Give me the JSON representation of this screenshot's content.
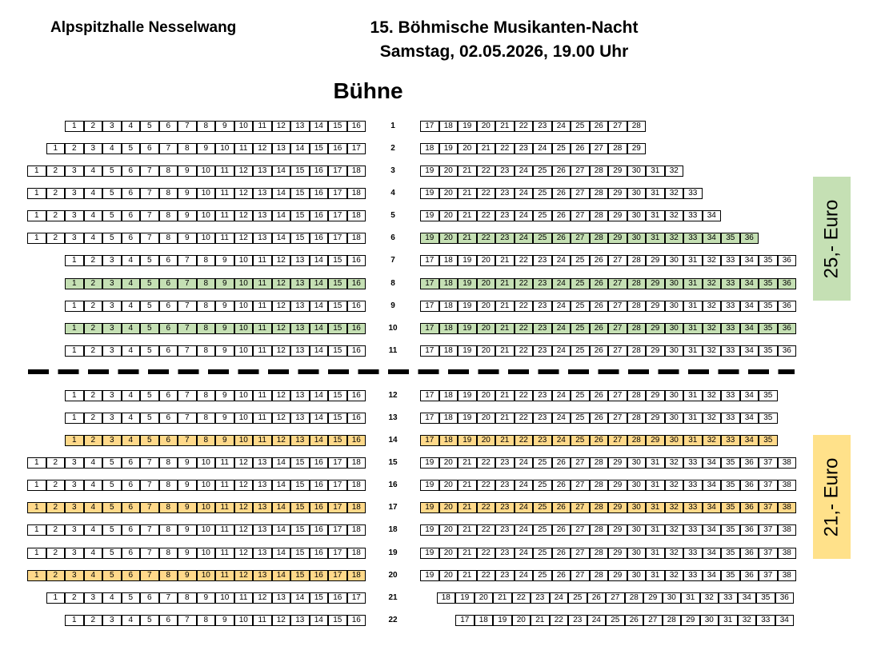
{
  "header": {
    "venue": "Alpspitzhalle Nesselwang",
    "title_line1": "15. Böhmische Musikanten-Nacht",
    "title_line2": "Samstag, 02.05.2026, 19.00 Uhr",
    "stage": "Bühne"
  },
  "prices": {
    "front": "25,- Euro",
    "back": "21,- Euro"
  },
  "colors": {
    "front_highlight": "#c5e0b4",
    "back_highlight": "#ffd98a"
  },
  "rows": [
    {
      "row": "1",
      "left": [
        1,
        16
      ],
      "right": [
        17,
        28
      ],
      "hl": ""
    },
    {
      "row": "2",
      "left": [
        1,
        17
      ],
      "right": [
        18,
        29
      ],
      "hl": ""
    },
    {
      "row": "3",
      "left": [
        1,
        18
      ],
      "right": [
        19,
        32
      ],
      "hl": ""
    },
    {
      "row": "4",
      "left": [
        1,
        18
      ],
      "right": [
        19,
        33
      ],
      "hl": ""
    },
    {
      "row": "5",
      "left": [
        1,
        18
      ],
      "right": [
        19,
        34
      ],
      "hl": ""
    },
    {
      "row": "6",
      "left": [
        1,
        18
      ],
      "right": [
        19,
        36
      ],
      "hl": "right-green"
    },
    {
      "row": "7",
      "left": [
        1,
        16
      ],
      "right": [
        17,
        36
      ],
      "hl": ""
    },
    {
      "row": "8",
      "left": [
        1,
        16
      ],
      "right": [
        17,
        36
      ],
      "hl": "green"
    },
    {
      "row": "9",
      "left": [
        1,
        16
      ],
      "right": [
        17,
        36
      ],
      "hl": ""
    },
    {
      "row": "10",
      "left": [
        1,
        16
      ],
      "right": [
        17,
        36
      ],
      "hl": "green"
    },
    {
      "row": "11",
      "left": [
        1,
        16
      ],
      "right": [
        17,
        36
      ],
      "hl": ""
    },
    {
      "row": "12",
      "left": [
        1,
        16
      ],
      "right": [
        17,
        35
      ],
      "hl": ""
    },
    {
      "row": "13",
      "left": [
        1,
        16
      ],
      "right": [
        17,
        35
      ],
      "hl": ""
    },
    {
      "row": "14",
      "left": [
        1,
        16
      ],
      "right": [
        17,
        35
      ],
      "hl": "yellow"
    },
    {
      "row": "15",
      "left": [
        1,
        18
      ],
      "right": [
        19,
        38
      ],
      "hl": ""
    },
    {
      "row": "16",
      "left": [
        1,
        18
      ],
      "right": [
        19,
        38
      ],
      "hl": ""
    },
    {
      "row": "17",
      "left": [
        1,
        18
      ],
      "right": [
        19,
        38
      ],
      "hl": "yellow"
    },
    {
      "row": "18",
      "left": [
        1,
        18
      ],
      "right": [
        19,
        38
      ],
      "hl": ""
    },
    {
      "row": "19",
      "left": [
        1,
        18
      ],
      "right": [
        19,
        38
      ],
      "hl": ""
    },
    {
      "row": "20",
      "left": [
        1,
        18
      ],
      "right": [
        19,
        38
      ],
      "hl": "left-yellow"
    },
    {
      "row": "21",
      "left": [
        1,
        17
      ],
      "right": [
        18,
        36
      ],
      "hl": ""
    },
    {
      "row": "22",
      "left": [
        1,
        16
      ],
      "right": [
        17,
        34
      ],
      "hl": ""
    }
  ]
}
